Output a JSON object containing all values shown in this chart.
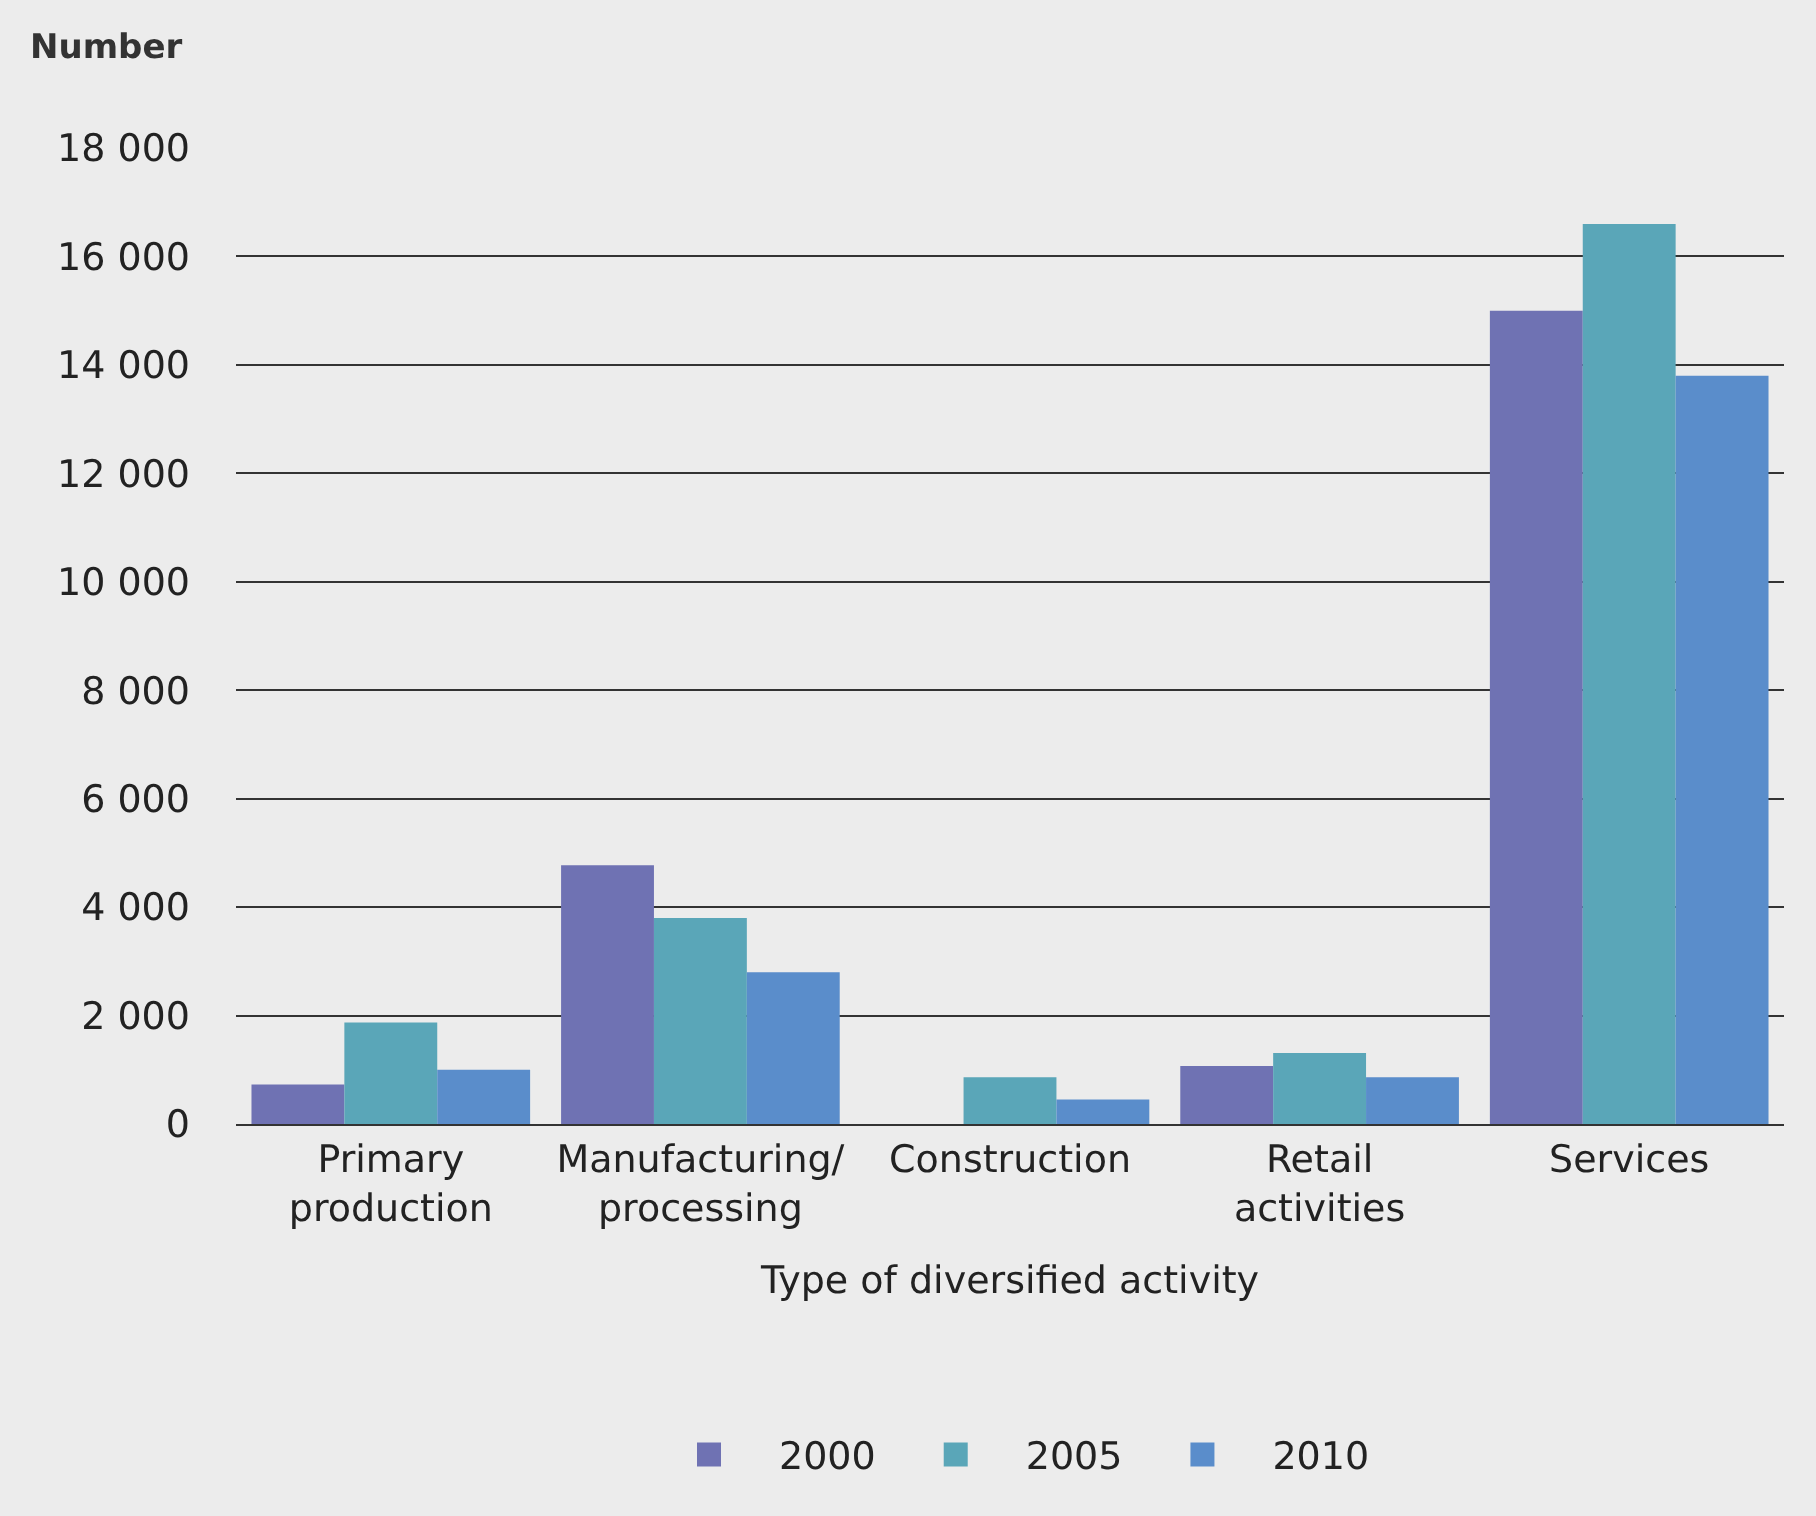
{
  "chart_data": {
    "type": "bar",
    "ylabel": "Number",
    "xlabel": "Type of diversified activity",
    "categories": [
      "Primary\nproduction",
      "Manufacturing/\nprocessing",
      "Construction",
      "Retail\nactivities",
      "Services"
    ],
    "series": [
      {
        "name": "2000",
        "color": "#6f72b3",
        "values": [
          730,
          4770,
          null,
          1070,
          15000
        ]
      },
      {
        "name": "2005",
        "color": "#5aa6b8",
        "values": [
          1870,
          3800,
          860,
          1310,
          16600
        ]
      },
      {
        "name": "2010",
        "color": "#5a8dcb",
        "values": [
          1000,
          2800,
          450,
          860,
          13800
        ]
      }
    ],
    "ylim": [
      0,
      18000
    ],
    "yticks": [
      0,
      {
        "value": 2000,
        "label": "2 000"
      },
      {
        "value": 4000,
        "label": "4 000"
      },
      {
        "value": 6000,
        "label": "6 000"
      },
      {
        "value": 8000,
        "label": "8 000"
      },
      {
        "value": 10000,
        "label": "10 000"
      },
      {
        "value": 12000,
        "label": "12 000"
      },
      {
        "value": 14000,
        "label": "14 000"
      },
      {
        "value": 16000,
        "label": "16 000"
      },
      {
        "value": 18000,
        "label": "18 000"
      }
    ],
    "grid": "y",
    "legend": "bottom"
  }
}
